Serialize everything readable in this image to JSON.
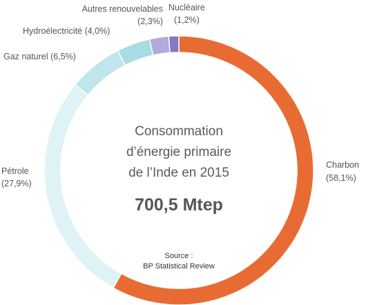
{
  "chart_data": {
    "type": "pie",
    "variant": "donut",
    "title_lines": [
      "Consommation",
      "d’énergie primaire",
      "de l’Inde en 2015"
    ],
    "total": "700,5 Mtep",
    "source_lines": [
      "Source :",
      "BP Statistical Review"
    ],
    "slices": [
      {
        "name": "Charbon",
        "value": 58.1,
        "value_label": "(58,1%)",
        "color": "#e86b33"
      },
      {
        "name": "Pétrole",
        "value": 27.9,
        "value_label": "(27,9%)",
        "color": "#dff3f7"
      },
      {
        "name": "Gaz naturel",
        "value": 6.5,
        "value_label": "(6,5%)",
        "color": "#bfe6ec"
      },
      {
        "name": "Hydroélectricité",
        "value": 4.0,
        "value_label": "(4,0%)",
        "color": "#a6dce3"
      },
      {
        "name": "Autres renouvelables",
        "value": 2.3,
        "value_label": "(2,3%)",
        "color": "#b2a9dd"
      },
      {
        "name": "Nucléaire",
        "value": 1.2,
        "value_label": "(1,2%)",
        "color": "#8577c7"
      }
    ]
  }
}
